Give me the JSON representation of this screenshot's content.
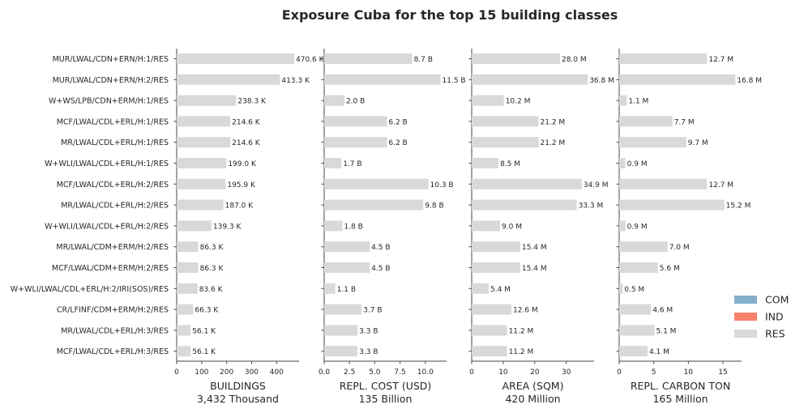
{
  "title": "Exposure Cuba for the top 15 building classes",
  "colors": {
    "COM": "#86b0cc",
    "IND": "#f8806d",
    "RES": "#d9d9d9"
  },
  "legend": {
    "items": [
      "COM",
      "IND",
      "RES"
    ],
    "placement": "bottom-right"
  },
  "chart_data": {
    "type": "bar",
    "orientation": "horizontal",
    "title": "Exposure Cuba for the top 15 building classes",
    "categories": [
      "MUR/LWAL/CDN+ERN/H:1/RES",
      "MUR/LWAL/CDN+ERN/H:2/RES",
      "W+WS/LPB/CDN+ERM/H:1/RES",
      "MCF/LWAL/CDL+ERL/H:1/RES",
      "MR/LWAL/CDL+ERL/H:1/RES",
      "W+WLI/LWAL/CDL+ERL/H:1/RES",
      "MCF/LWAL/CDL+ERL/H:2/RES",
      "MR/LWAL/CDL+ERL/H:2/RES",
      "W+WLI/LWAL/CDL+ERL/H:2/RES",
      "MR/LWAL/CDM+ERM/H:2/RES",
      "MCF/LWAL/CDM+ERM/H:2/RES",
      "W+WLI/LWAL/CDL+ERL/H:2/IRI(SOS)/RES",
      "CR/LFINF/CDM+ERM/H:2/RES",
      "MR/LWAL/CDL+ERL/H:3/RES",
      "MCF/LWAL/CDL+ERL/H:3/RES"
    ],
    "occupancy": [
      "RES",
      "RES",
      "RES",
      "RES",
      "RES",
      "RES",
      "RES",
      "RES",
      "RES",
      "RES",
      "RES",
      "RES",
      "RES",
      "RES",
      "RES"
    ],
    "panels": [
      {
        "xlabel": "BUILDINGS",
        "total": "3,432 Thousand",
        "unit": "thousand buildings",
        "xlim": [
          0,
          490
        ],
        "ticks": [
          0,
          100,
          200,
          300,
          400
        ],
        "tick_labels": [
          "0",
          "100",
          "200",
          "300",
          "400"
        ],
        "values": [
          470.6,
          413.3,
          238.3,
          214.6,
          214.6,
          199.0,
          195.9,
          187.0,
          139.3,
          86.3,
          86.3,
          83.6,
          66.3,
          56.1,
          56.1
        ],
        "labels": [
          "470.6 K",
          "413.3 K",
          "238.3 K",
          "214.6 K",
          "214.6 K",
          "199.0 K",
          "195.9 K",
          "187.0 K",
          "139.3 K",
          "86.3 K",
          "86.3 K",
          "83.6 K",
          "66.3 K",
          "56.1 K",
          "56.1 K"
        ]
      },
      {
        "xlabel": "REPL. COST (USD)",
        "total": "135 Billion",
        "unit": "billion USD",
        "xlim": [
          0,
          12.1
        ],
        "ticks": [
          0,
          2.5,
          5,
          7.5,
          10
        ],
        "tick_labels": [
          "0.0",
          "2.5",
          "5.0",
          "7.5",
          "10.0"
        ],
        "values": [
          8.7,
          11.5,
          2.0,
          6.2,
          6.2,
          1.7,
          10.3,
          9.8,
          1.8,
          4.5,
          4.5,
          1.1,
          3.7,
          3.3,
          3.3
        ],
        "labels": [
          "8.7 B",
          "11.5 B",
          "2.0 B",
          "6.2 B",
          "6.2 B",
          "1.7 B",
          "10.3 B",
          "9.8 B",
          "1.8 B",
          "4.5 B",
          "4.5 B",
          "1.1 B",
          "3.7 B",
          "3.3 B",
          "3.3 B"
        ]
      },
      {
        "xlabel": "AREA (SQM)",
        "total": "420 Million",
        "unit": "million sqm",
        "xlim": [
          0,
          38.8
        ],
        "ticks": [
          0,
          10,
          20,
          30
        ],
        "tick_labels": [
          "0",
          "10",
          "20",
          "30"
        ],
        "values": [
          28.0,
          36.8,
          10.2,
          21.2,
          21.2,
          8.5,
          34.9,
          33.3,
          9.0,
          15.4,
          15.4,
          5.4,
          12.6,
          11.2,
          11.2
        ],
        "labels": [
          "28.0 M",
          "36.8 M",
          "10.2 M",
          "21.2 M",
          "21.2 M",
          "8.5 M",
          "34.9 M",
          "33.3 M",
          "9.0 M",
          "15.4 M",
          "15.4 M",
          "5.4 M",
          "12.6 M",
          "11.2 M",
          "11.2 M"
        ]
      },
      {
        "xlabel": "REPL. CARBON TON",
        "total": "165 Million",
        "unit": "million tons",
        "xlim": [
          0,
          17.7
        ],
        "ticks": [
          0,
          5,
          10,
          15
        ],
        "tick_labels": [
          "0",
          "5",
          "10",
          "15"
        ],
        "values": [
          12.7,
          16.8,
          1.1,
          7.7,
          9.7,
          0.9,
          12.7,
          15.2,
          0.9,
          7.0,
          5.6,
          0.5,
          4.6,
          5.1,
          4.1
        ],
        "labels": [
          "12.7 M",
          "16.8 M",
          "1.1 M",
          "7.7 M",
          "9.7 M",
          "0.9 M",
          "12.7 M",
          "15.2 M",
          "0.9 M",
          "7.0 M",
          "5.6 M",
          "0.5 M",
          "4.6 M",
          "5.1 M",
          "4.1 M"
        ]
      }
    ],
    "grid": false
  }
}
